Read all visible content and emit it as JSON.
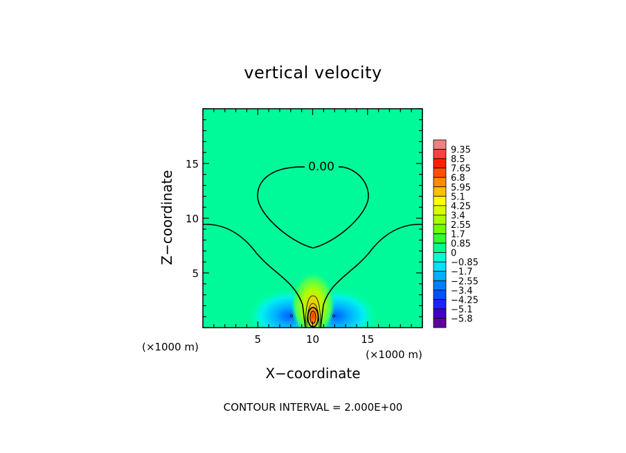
{
  "chart_data": {
    "type": "heatmap",
    "title": "vertical velocity",
    "xlabel": "X−coordinate",
    "ylabel": "Z−coordinate",
    "x_unit": "(×1000 m)",
    "y_unit": "(×1000 m)",
    "xlim": [
      0,
      20
    ],
    "ylim": [
      0,
      20
    ],
    "x_ticks": [
      5,
      10,
      15
    ],
    "y_ticks": [
      5,
      10,
      15
    ],
    "contour_label": "0.00",
    "footer": "CONTOUR INTERVAL = 2.000E+00",
    "colorbar": {
      "labels": [
        "9.35",
        "8.5",
        "7.65",
        "6.8",
        "5.95",
        "5.1",
        "4.25",
        "3.4",
        "2.55",
        "1.7",
        "0.85",
        "0",
        "−0.85",
        "−1.7",
        "−2.55",
        "−3.4",
        "−4.25",
        "−5.1",
        "−5.8"
      ],
      "colors": [
        "#f08080",
        "#ff4040",
        "#ff2000",
        "#ff5000",
        "#ff8c00",
        "#ffc000",
        "#ffff00",
        "#d8ff00",
        "#a8ff00",
        "#70ff00",
        "#30ff30",
        "#00ff90",
        "#00ffd0",
        "#00e0ff",
        "#00b0ff",
        "#0080ff",
        "#0050ff",
        "#2020ff",
        "#4000c0",
        "#6000a0"
      ]
    }
  }
}
